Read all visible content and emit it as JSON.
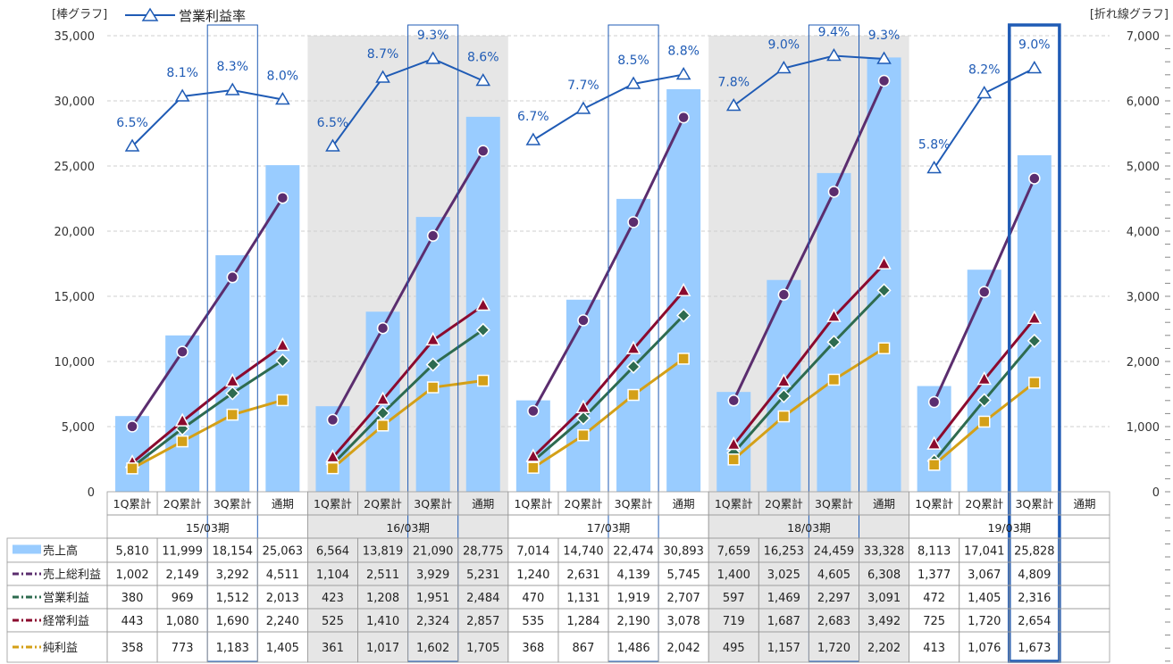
{
  "chart_data": {
    "type": "bar",
    "left_axis_label": "[棒グラフ]",
    "right_axis_label": "[折れ線グラフ]",
    "left_ticks": [
      "35,000",
      "30,000",
      "25,000",
      "20,000",
      "15,000",
      "10,000",
      "5,000",
      "0"
    ],
    "right_ticks": [
      "7,000",
      "6,000",
      "5,000",
      "4,000",
      "3,000",
      "2,000",
      "1,000",
      "0"
    ],
    "ylim_left": [
      0,
      35000
    ],
    "ylim_right": [
      0,
      7000
    ],
    "grid": true,
    "legend_top": "営業利益率",
    "colors": {
      "sales": "#99ccff",
      "gross": "#5b2d6e",
      "operating": "#2e6b4f",
      "ordinary": "#8b0a2e",
      "net": "#d4a017",
      "margin": "#1f5bb5",
      "shade": "#e6e6e6",
      "highlight": "#1f5bb5"
    },
    "categories": [
      "1Q累計",
      "2Q累計",
      "3Q累計",
      "通期",
      "1Q累計",
      "2Q累計",
      "3Q累計",
      "通期",
      "1Q累計",
      "2Q累計",
      "3Q累計",
      "通期",
      "1Q累計",
      "2Q累計",
      "3Q累計",
      "通期",
      "1Q累計",
      "2Q累計",
      "3Q累計",
      "通期"
    ],
    "periods": [
      "15/03期",
      "16/03期",
      "17/03期",
      "18/03期",
      "19/03期"
    ],
    "shaded_periods": [
      1,
      3
    ],
    "boxed_columns": [
      2,
      6,
      10,
      14
    ],
    "emphasis_column": 18,
    "bar_series": {
      "name": "売上高",
      "values": [
        5810,
        11999,
        18154,
        25063,
        6564,
        13819,
        21090,
        28775,
        7014,
        14740,
        22474,
        30893,
        7659,
        16253,
        24459,
        33328,
        8113,
        17041,
        25828,
        null
      ]
    },
    "line_series": [
      {
        "key": "gross",
        "name": "売上総利益",
        "marker": "circle",
        "values": [
          1002,
          2149,
          3292,
          4511,
          1104,
          2511,
          3929,
          5231,
          1240,
          2631,
          4139,
          5745,
          1400,
          3025,
          4605,
          6308,
          1377,
          3067,
          4809,
          null
        ]
      },
      {
        "key": "operating",
        "name": "営業利益",
        "marker": "diamond",
        "values": [
          380,
          969,
          1512,
          2013,
          423,
          1208,
          1951,
          2484,
          470,
          1131,
          1919,
          2707,
          597,
          1469,
          2297,
          3091,
          472,
          1405,
          2316,
          null
        ]
      },
      {
        "key": "ordinary",
        "name": "経常利益",
        "marker": "triangle",
        "values": [
          443,
          1080,
          1690,
          2240,
          525,
          1410,
          2324,
          2857,
          535,
          1284,
          2190,
          3078,
          719,
          1687,
          2683,
          3492,
          725,
          1720,
          2654,
          null
        ]
      },
      {
        "key": "net",
        "name": "純利益",
        "marker": "square",
        "values": [
          358,
          773,
          1183,
          1405,
          361,
          1017,
          1602,
          1705,
          368,
          867,
          1486,
          2042,
          495,
          1157,
          1720,
          2202,
          413,
          1076,
          1673,
          null
        ]
      }
    ],
    "margin_series": {
      "name": "営業利益率",
      "values": [
        6.5,
        8.1,
        8.3,
        8.0,
        6.5,
        8.7,
        9.3,
        8.6,
        6.7,
        7.7,
        8.5,
        8.8,
        7.8,
        9.0,
        9.4,
        9.3,
        5.8,
        8.2,
        9.0,
        null
      ],
      "labels": [
        "6.5%",
        "8.1%",
        "8.3%",
        "8.0%",
        "6.5%",
        "8.7%",
        "9.3%",
        "8.6%",
        "6.7%",
        "7.7%",
        "8.5%",
        "8.8%",
        "7.8%",
        "9.0%",
        "9.4%",
        "9.3%",
        "5.8%",
        "8.2%",
        "9.0%",
        ""
      ]
    },
    "table_rows": [
      {
        "key": "sales",
        "label": "売上高",
        "cells": [
          "5,810",
          "11,999",
          "18,154",
          "25,063",
          "6,564",
          "13,819",
          "21,090",
          "28,775",
          "7,014",
          "14,740",
          "22,474",
          "30,893",
          "7,659",
          "16,253",
          "24,459",
          "33,328",
          "8,113",
          "17,041",
          "25,828",
          ""
        ]
      },
      {
        "key": "gross",
        "label": "売上総利益",
        "cells": [
          "1,002",
          "2,149",
          "3,292",
          "4,511",
          "1,104",
          "2,511",
          "3,929",
          "5,231",
          "1,240",
          "2,631",
          "4,139",
          "5,745",
          "1,400",
          "3,025",
          "4,605",
          "6,308",
          "1,377",
          "3,067",
          "4,809",
          ""
        ]
      },
      {
        "key": "operating",
        "label": "営業利益",
        "cells": [
          "380",
          "969",
          "1,512",
          "2,013",
          "423",
          "1,208",
          "1,951",
          "2,484",
          "470",
          "1,131",
          "1,919",
          "2,707",
          "597",
          "1,469",
          "2,297",
          "3,091",
          "472",
          "1,405",
          "2,316",
          ""
        ]
      },
      {
        "key": "ordinary",
        "label": "経常利益",
        "cells": [
          "443",
          "1,080",
          "1,690",
          "2,240",
          "525",
          "1,410",
          "2,324",
          "2,857",
          "535",
          "1,284",
          "2,190",
          "3,078",
          "719",
          "1,687",
          "2,683",
          "3,492",
          "725",
          "1,720",
          "2,654",
          ""
        ]
      },
      {
        "key": "net",
        "label": "純利益",
        "cells": [
          "358",
          "773",
          "1,183",
          "1,405",
          "361",
          "1,017",
          "1,602",
          "1,705",
          "368",
          "867",
          "1,486",
          "2,042",
          "495",
          "1,157",
          "1,720",
          "2,202",
          "413",
          "1,076",
          "1,673",
          ""
        ]
      }
    ]
  }
}
